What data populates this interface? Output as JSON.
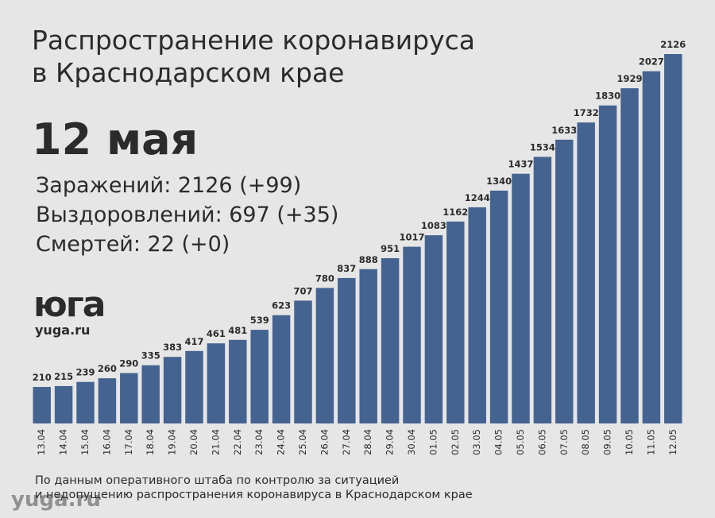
{
  "chart_data": {
    "type": "bar",
    "title": [
      "Распространение коронавируса",
      "в Краснодарском крае"
    ],
    "date": "12 мая",
    "stats": [
      "Заражений: 2126 (+99)",
      "Выздоровлений: 697 (+35)",
      "Смертей: 22 (+0)"
    ],
    "logo": "юга",
    "logo_site": "yuga.ru",
    "watermark": "yuga.ru",
    "source": [
      "По данным оперативного штаба по контролю за ситуацией",
      "и недопущению распространения коронавируса в Краснодарском крае"
    ],
    "categories": [
      "13.04",
      "14.04",
      "15.04",
      "16.04",
      "17.04",
      "18.04",
      "19.04",
      "20.04",
      "21.04",
      "22.04",
      "23.04",
      "24.04",
      "25.04",
      "26.04",
      "27.04",
      "28.04",
      "29.04",
      "30.04",
      "01.05",
      "02.05",
      "03.05",
      "04.05",
      "05.05",
      "06.05",
      "07.05",
      "08.05",
      "09.05",
      "10.05",
      "11.05",
      "12.05"
    ],
    "values": [
      210,
      215,
      239,
      260,
      290,
      335,
      383,
      417,
      461,
      481,
      539,
      623,
      707,
      780,
      837,
      888,
      951,
      1017,
      1083,
      1162,
      1244,
      1340,
      1437,
      1534,
      1633,
      1732,
      1830,
      1929,
      2027,
      2126
    ],
    "color": "#456390"
  }
}
